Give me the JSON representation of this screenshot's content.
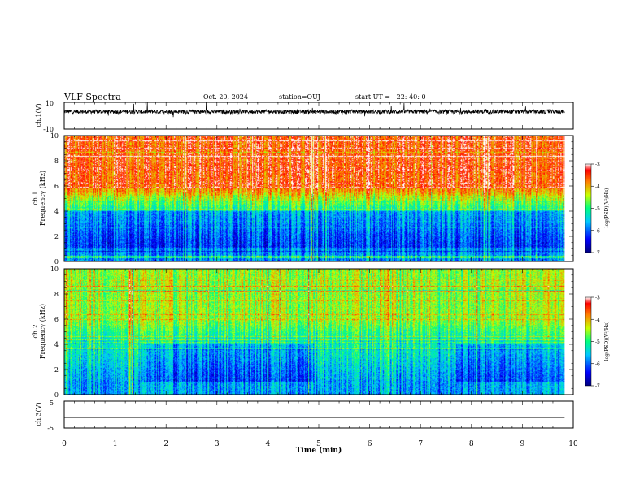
{
  "header": {
    "title": "VLF Spectra",
    "date": "Oct. 20, 2024",
    "station": "station=OUJ",
    "start_ut": "start UT =   22: 40: 0"
  },
  "colors": {
    "waveform": "#000000",
    "axes": "#000000",
    "colormap": [
      "#000080",
      "#0000ff",
      "#00c8ff",
      "#00ff80",
      "#c8ff00",
      "#ff8000",
      "#ff0000",
      "#ffffff"
    ]
  },
  "chart_data": [
    {
      "type": "line",
      "panel": "waveform-ch1",
      "ylabel": "ch.1(V)",
      "ylim": [
        -10,
        10
      ],
      "yticks": [
        "10",
        "-10"
      ],
      "xlim": [
        0,
        10
      ],
      "grid": false,
      "description_values": {
        "baseline": 3,
        "noise_amplitude": 1.5
      }
    },
    {
      "type": "heatmap",
      "panel": "spectrogram-ch1",
      "ylabel": [
        "ch.1",
        "Frequency (kHz)"
      ],
      "ylim": [
        0,
        10
      ],
      "yticks": [
        "0",
        "2",
        "4",
        "6",
        "8",
        "10"
      ],
      "xlim": [
        0,
        10
      ],
      "data_end_min": 9.83,
      "colorbar": {
        "label": "log(PSD)(V²/Hz)",
        "ticks": [
          "-3",
          "-4",
          "-5",
          "-6",
          "-7"
        ],
        "range": [
          -7,
          -3
        ]
      }
    },
    {
      "type": "heatmap",
      "panel": "spectrogram-ch2",
      "ylabel": [
        "ch.2",
        "Frequency (kHz)"
      ],
      "ylim": [
        0,
        10
      ],
      "yticks": [
        "0",
        "2",
        "4",
        "6",
        "8",
        "10"
      ],
      "xlim": [
        0,
        10
      ],
      "data_end_min": 9.83,
      "colorbar": {
        "label": "log(PSD)(V²/Hz)",
        "ticks": [
          "-3",
          "-4",
          "-5",
          "-6",
          "-7"
        ],
        "range": [
          -7,
          -3
        ]
      }
    },
    {
      "type": "line",
      "panel": "waveform-ch3",
      "ylabel": "ch.3(V)",
      "ylim": [
        -5,
        5
      ],
      "yticks": [
        "5",
        "-5"
      ],
      "xlim": [
        0,
        10
      ],
      "x": [
        0,
        9.83
      ],
      "y": [
        -1,
        -1
      ]
    }
  ],
  "xaxis": {
    "label": "Time (min)",
    "ticks": [
      "0",
      "1",
      "2",
      "3",
      "4",
      "5",
      "6",
      "7",
      "8",
      "9",
      "10"
    ]
  }
}
